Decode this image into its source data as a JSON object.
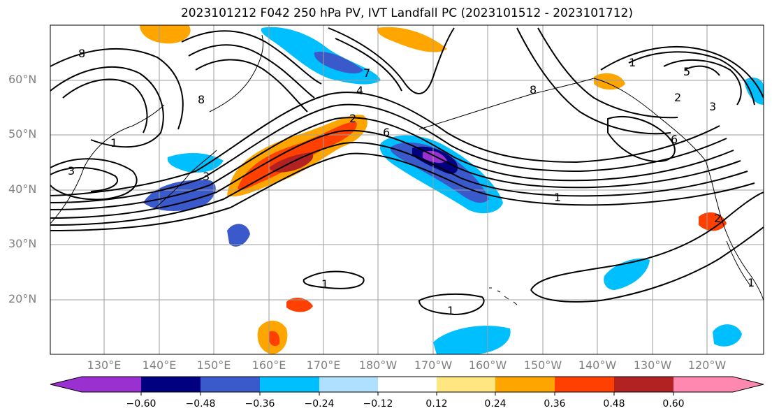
{
  "title": "2023101212 F042 250 hPa PV, IVT Landfall PC (2023101512 - 2023101712)",
  "lat_labels": [
    "60°N",
    "50°N",
    "40°N",
    "30°N",
    "20°N"
  ],
  "lon_labels": [
    "130°E",
    "140°E",
    "150°E",
    "160°E",
    "170°E",
    "180°W",
    "170°W",
    "160°W",
    "150°W",
    "140°W",
    "130°W",
    "120°W"
  ],
  "contour_labels": [
    "8",
    "8",
    "8",
    "1",
    "3",
    "3",
    "2",
    "4",
    "6",
    "7",
    "1",
    "1",
    "1",
    "2",
    "3",
    "5",
    "6",
    "1",
    "1",
    "2"
  ],
  "colorbar": {
    "ticks": [
      "−0.60",
      "−0.48",
      "−0.36",
      "−0.24",
      "−0.12",
      "0.12",
      "0.24",
      "0.36",
      "0.48",
      "0.60"
    ],
    "colors": [
      "#9b30d0",
      "#000080",
      "#3a5acc",
      "#00bfff",
      "#b0e0ff",
      "#ffffff",
      "#ffe680",
      "#ffa500",
      "#ff4000",
      "#b22222",
      "#ff88b0"
    ]
  }
}
